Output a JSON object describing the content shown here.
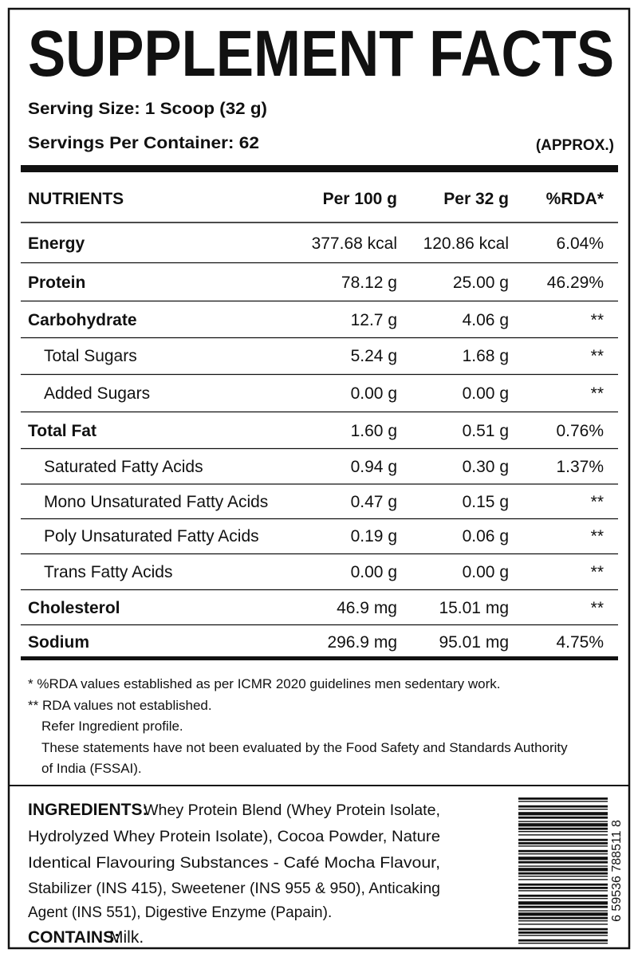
{
  "header": {
    "title": "SUPPLEMENT FACTS",
    "serving_size": "Serving Size: 1 Scoop (32 g)",
    "servings_per_container": "Servings Per Container: 62",
    "approx": "(APPROX.)"
  },
  "table": {
    "columns": [
      "NUTRIENTS",
      "Per 100 g",
      "Per 32 g",
      "%RDA*"
    ],
    "rows": [
      [
        "Energy",
        "377.68 kcal",
        "120.86 kcal",
        "6.04%"
      ],
      [
        "Protein",
        "78.12 g",
        "25.00 g",
        "46.29%"
      ],
      [
        "Carbohydrate",
        "12.7 g",
        "4.06 g",
        "**"
      ],
      [
        "Total Sugars",
        "5.24 g",
        "1.68 g",
        "**"
      ],
      [
        "Added Sugars",
        "0.00 g",
        "0.00 g",
        "**"
      ],
      [
        "Total Fat",
        "1.60 g",
        "0.51 g",
        "0.76%"
      ],
      [
        "Saturated Fatty Acids",
        "0.94 g",
        "0.30 g",
        "1.37%"
      ],
      [
        "Mono Unsaturated Fatty Acids",
        "0.47 g",
        "0.15 g",
        "**"
      ],
      [
        "Poly Unsaturated Fatty Acids",
        "0.19 g",
        "0.06 g",
        "**"
      ],
      [
        "Trans Fatty Acids",
        "0.00 g",
        "0.00 g",
        "**"
      ],
      [
        "Cholesterol",
        "46.9 mg",
        "15.01 mg",
        "**"
      ],
      [
        "Sodium",
        "296.9 mg",
        "95.01 mg",
        "4.75%"
      ]
    ]
  },
  "footnotes": [
    "* %RDA values established as per ICMR 2020 guidelines men sedentary work.",
    "** RDA values not established.",
    "Refer Ingredient profile.",
    "These statements have not been evaluated by the Food Safety and Standards Authority",
    "of India (FSSAI)."
  ],
  "ingredients": {
    "label": "INGREDIENTS:",
    "lines": [
      "Whey Protein Blend (Whey Protein Isolate,",
      "Hydrolyzed Whey Protein Isolate), Cocoa Powder, Nature",
      "Identical Flavouring Substances - Café Mocha Flavour,",
      "Stabilizer (INS 415), Sweetener (INS 955 & 950), Anticaking",
      "Agent (INS 551), Digestive Enzyme (Papain)."
    ],
    "contains_label": "CONTAINS:",
    "contains": "Milk."
  },
  "barcode": "6 59536 788511 8"
}
